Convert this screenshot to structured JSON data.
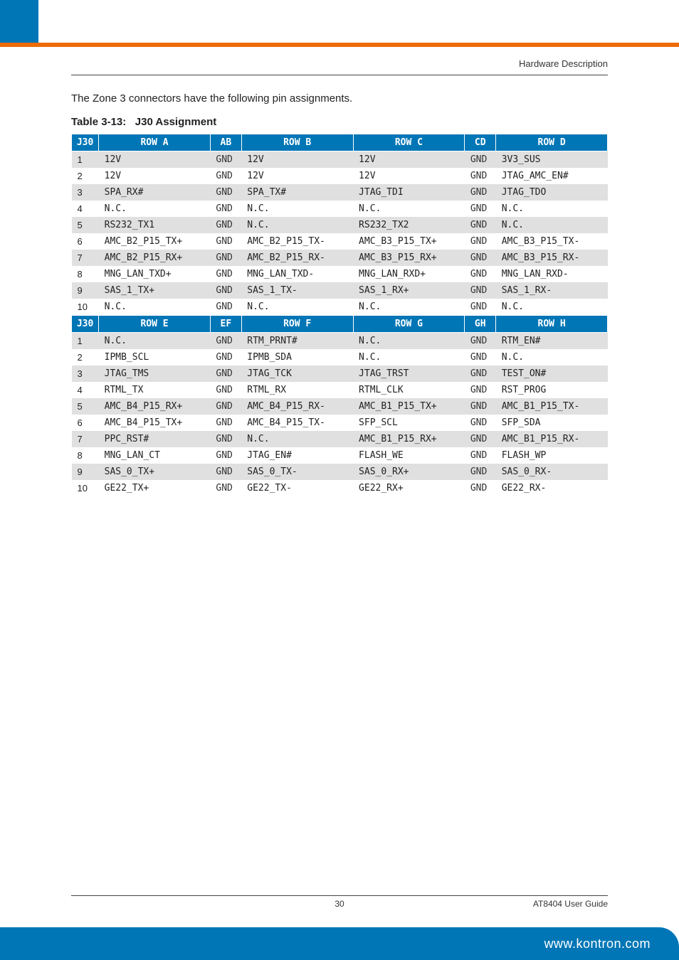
{
  "header": {
    "section": "Hardware Description"
  },
  "intro": "The Zone 3 connectors have the following pin assignments.",
  "table": {
    "title_prefix": "Table 3-13:",
    "title": "J30 Assignment",
    "header1": [
      "J30",
      "ROW A",
      "AB",
      "ROW B",
      "ROW C",
      "CD",
      "ROW D"
    ],
    "rows1": [
      [
        "1",
        "12V",
        "GND",
        "12V",
        "12V",
        "GND",
        "3V3_SUS"
      ],
      [
        "2",
        "12V",
        "GND",
        "12V",
        "12V",
        "GND",
        "JTAG_AMC_EN#"
      ],
      [
        "3",
        "SPA_RX#",
        "GND",
        "SPA_TX#",
        "JTAG_TDI",
        "GND",
        "JTAG_TDO"
      ],
      [
        "4",
        "N.C.",
        "GND",
        "N.C.",
        "N.C.",
        "GND",
        "N.C."
      ],
      [
        "5",
        "RS232_TX1",
        "GND",
        "N.C.",
        "RS232_TX2",
        "GND",
        "N.C."
      ],
      [
        "6",
        "AMC_B2_P15_TX+",
        "GND",
        "AMC_B2_P15_TX-",
        "AMC_B3_P15_TX+",
        "GND",
        "AMC_B3_P15_TX-"
      ],
      [
        "7",
        "AMC_B2_P15_RX+",
        "GND",
        "AMC_B2_P15_RX-",
        "AMC_B3_P15_RX+",
        "GND",
        "AMC_B3_P15_RX-"
      ],
      [
        "8",
        "MNG_LAN_TXD+",
        "GND",
        "MNG_LAN_TXD-",
        "MNG_LAN_RXD+",
        "GND",
        "MNG_LAN_RXD-"
      ],
      [
        "9",
        "SAS_1_TX+",
        "GND",
        "SAS_1_TX-",
        "SAS_1_RX+",
        "GND",
        "SAS_1_RX-"
      ],
      [
        "10",
        "N.C.",
        "GND",
        "N.C.",
        "N.C.",
        "GND",
        "N.C."
      ]
    ],
    "header2": [
      "J30",
      "ROW E",
      "EF",
      "ROW F",
      "ROW G",
      "GH",
      "ROW H"
    ],
    "rows2": [
      [
        "1",
        "N.C.",
        "GND",
        "RTM_PRNT#",
        "N.C.",
        "GND",
        "RTM_EN#"
      ],
      [
        "2",
        "IPMB_SCL",
        "GND",
        "IPMB_SDA",
        "N.C.",
        "GND",
        "N.C."
      ],
      [
        "3",
        "JTAG_TMS",
        "GND",
        "JTAG_TCK",
        "JTAG_TRST",
        "GND",
        "TEST_ON#"
      ],
      [
        "4",
        "RTML_TX",
        "GND",
        "RTML_RX",
        "RTML_CLK",
        "GND",
        "RST_PROG"
      ],
      [
        "5",
        "AMC_B4_P15_RX+",
        "GND",
        "AMC_B4_P15_RX-",
        "AMC_B1_P15_TX+",
        "GND",
        "AMC_B1_P15_TX-"
      ],
      [
        "6",
        "AMC_B4_P15_TX+",
        "GND",
        "AMC_B4_P15_TX-",
        "SFP_SCL",
        "GND",
        "SFP_SDA"
      ],
      [
        "7",
        "PPC_RST#",
        "GND",
        "N.C.",
        "AMC_B1_P15_RX+",
        "GND",
        "AMC_B1_P15_RX-"
      ],
      [
        "8",
        "MNG_LAN_CT",
        "GND",
        "JTAG_EN#",
        "FLASH_WE",
        "GND",
        "FLASH_WP"
      ],
      [
        "9",
        "SAS_0_TX+",
        "GND",
        "SAS_0_TX-",
        "SAS_0_RX+",
        "GND",
        "SAS_0_RX-"
      ],
      [
        "10",
        "GE22_TX+",
        "GND",
        "GE22_TX-",
        "GE22_RX+",
        "GND",
        "GE22_RX-"
      ]
    ]
  },
  "footer": {
    "page": "30",
    "doc": "AT8404 User  Guide",
    "url": "www.kontron.com"
  },
  "colors": {
    "brand_blue": "#0076b6",
    "brand_orange": "#ed6b06",
    "row_alt": "#e0e0e0"
  }
}
